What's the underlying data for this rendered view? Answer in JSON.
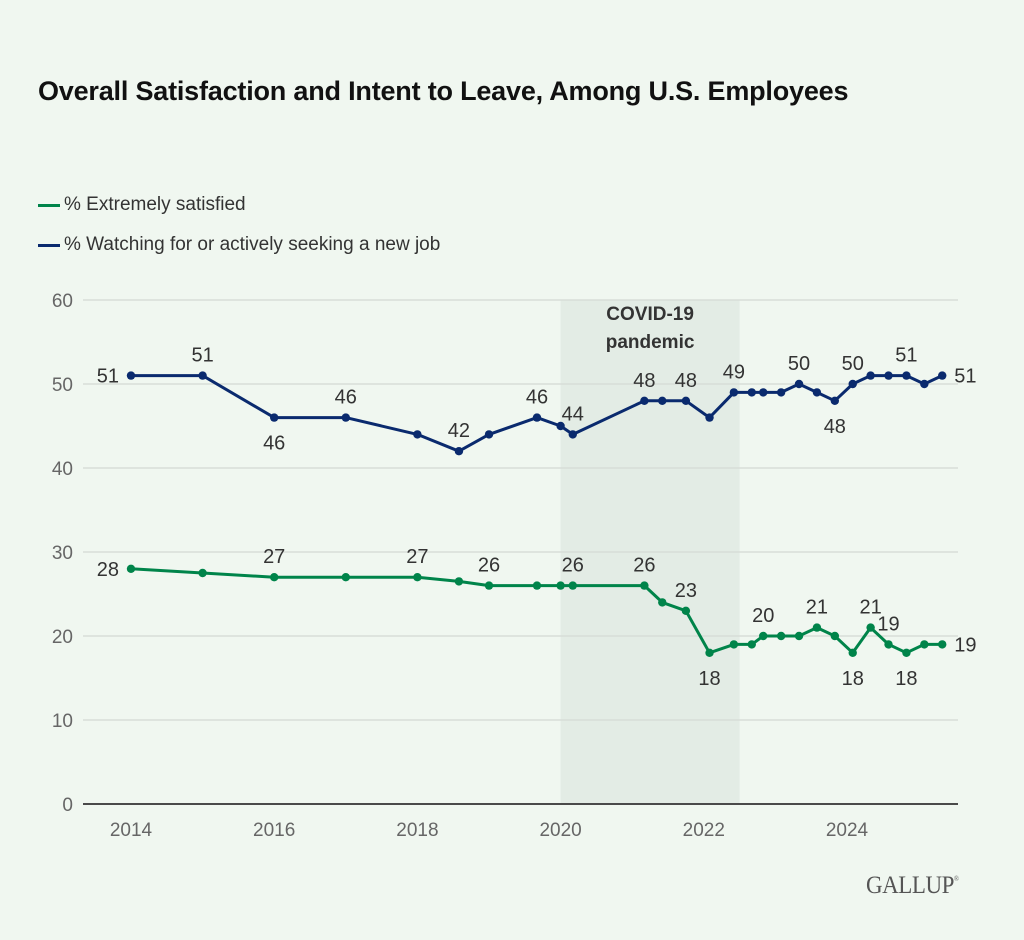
{
  "chart_data": {
    "type": "line",
    "title": "Overall Satisfaction and Intent to Leave, Among U.S. Employees",
    "xlabel": "",
    "ylabel": "",
    "ylim": [
      0,
      60
    ],
    "xlim": [
      2013.3,
      2025.55
    ],
    "yticks": [
      0,
      10,
      20,
      30,
      40,
      50,
      60
    ],
    "xticks": [
      2014,
      2016,
      2018,
      2020,
      2022,
      2024
    ],
    "grid": true,
    "legend_position": "top-left",
    "annotation": {
      "label_line1": "COVID-19",
      "label_line2": "pandemic",
      "x_start": 2020.0,
      "x_end": 2022.5
    },
    "series": [
      {
        "name": "% Extremely satisfied",
        "color": "#00844a",
        "points": [
          {
            "x": 2014.0,
            "y": 28,
            "label": "28",
            "label_pos": "left"
          },
          {
            "x": 2015.0,
            "y": 27.5
          },
          {
            "x": 2016.0,
            "y": 27,
            "label": "27",
            "label_pos": "above"
          },
          {
            "x": 2017.0,
            "y": 27
          },
          {
            "x": 2018.0,
            "y": 27,
            "label": "27",
            "label_pos": "above"
          },
          {
            "x": 2018.58,
            "y": 26.5
          },
          {
            "x": 2019.0,
            "y": 26,
            "label": "26",
            "label_pos": "above"
          },
          {
            "x": 2019.67,
            "y": 26
          },
          {
            "x": 2020.0,
            "y": 26
          },
          {
            "x": 2020.17,
            "y": 26,
            "label": "26",
            "label_pos": "above"
          },
          {
            "x": 2021.17,
            "y": 26,
            "label": "26",
            "label_pos": "above"
          },
          {
            "x": 2021.42,
            "y": 24
          },
          {
            "x": 2021.75,
            "y": 23,
            "label": "23",
            "label_pos": "above"
          },
          {
            "x": 2022.08,
            "y": 18,
            "label": "18",
            "label_pos": "below"
          },
          {
            "x": 2022.42,
            "y": 19
          },
          {
            "x": 2022.67,
            "y": 19
          },
          {
            "x": 2022.83,
            "y": 20,
            "label": "20",
            "label_pos": "above"
          },
          {
            "x": 2023.08,
            "y": 20
          },
          {
            "x": 2023.33,
            "y": 20
          },
          {
            "x": 2023.58,
            "y": 21,
            "label": "21",
            "label_pos": "above"
          },
          {
            "x": 2023.83,
            "y": 20
          },
          {
            "x": 2024.08,
            "y": 18,
            "label": "18",
            "label_pos": "below"
          },
          {
            "x": 2024.33,
            "y": 21,
            "label": "21",
            "label_pos": "above"
          },
          {
            "x": 2024.58,
            "y": 19,
            "label": "19",
            "label_pos": "above"
          },
          {
            "x": 2024.83,
            "y": 18,
            "label": "18",
            "label_pos": "below"
          },
          {
            "x": 2025.08,
            "y": 19
          },
          {
            "x": 2025.33,
            "y": 19,
            "label": "19",
            "label_pos": "right"
          }
        ]
      },
      {
        "name": "% Watching for or actively seeking a new job",
        "color": "#0a2a6e",
        "points": [
          {
            "x": 2014.0,
            "y": 51,
            "label": "51",
            "label_pos": "left"
          },
          {
            "x": 2015.0,
            "y": 51,
            "label": "51",
            "label_pos": "above"
          },
          {
            "x": 2016.0,
            "y": 46,
            "label": "46",
            "label_pos": "below"
          },
          {
            "x": 2017.0,
            "y": 46,
            "label": "46",
            "label_pos": "above"
          },
          {
            "x": 2018.0,
            "y": 44
          },
          {
            "x": 2018.58,
            "y": 42,
            "label": "42",
            "label_pos": "above"
          },
          {
            "x": 2019.0,
            "y": 44
          },
          {
            "x": 2019.67,
            "y": 46,
            "label": "46",
            "label_pos": "above"
          },
          {
            "x": 2020.0,
            "y": 45
          },
          {
            "x": 2020.17,
            "y": 44,
            "label": "44",
            "label_pos": "above"
          },
          {
            "x": 2021.17,
            "y": 48,
            "label": "48",
            "label_pos": "above"
          },
          {
            "x": 2021.42,
            "y": 48
          },
          {
            "x": 2021.75,
            "y": 48,
            "label": "48",
            "label_pos": "above"
          },
          {
            "x": 2022.08,
            "y": 46
          },
          {
            "x": 2022.42,
            "y": 49,
            "label": "49",
            "label_pos": "above"
          },
          {
            "x": 2022.67,
            "y": 49
          },
          {
            "x": 2022.83,
            "y": 49
          },
          {
            "x": 2023.08,
            "y": 49
          },
          {
            "x": 2023.33,
            "y": 50,
            "label": "50",
            "label_pos": "above"
          },
          {
            "x": 2023.58,
            "y": 49
          },
          {
            "x": 2023.83,
            "y": 48,
            "label": "48",
            "label_pos": "below"
          },
          {
            "x": 2024.08,
            "y": 50,
            "label": "50",
            "label_pos": "above"
          },
          {
            "x": 2024.33,
            "y": 51
          },
          {
            "x": 2024.58,
            "y": 51
          },
          {
            "x": 2024.83,
            "y": 51,
            "label": "51",
            "label_pos": "above"
          },
          {
            "x": 2025.08,
            "y": 50
          },
          {
            "x": 2025.33,
            "y": 51,
            "label": "51",
            "label_pos": "right"
          }
        ]
      }
    ]
  },
  "legend": {
    "items": [
      {
        "label": "% Extremely satisfied",
        "color": "#00844a"
      },
      {
        "label": "% Watching for or actively seeking a new job",
        "color": "#0a2a6e"
      }
    ]
  },
  "branding": {
    "logo_text": "GALLUP",
    "logo_mark": "®"
  }
}
